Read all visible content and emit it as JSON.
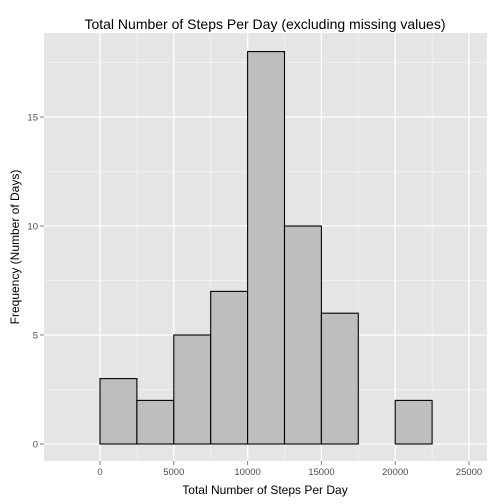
{
  "chart_data": {
    "type": "bar",
    "title": "Total Number of Steps Per Day (excluding missing values)",
    "xlabel": "Total Number of Steps Per Day",
    "ylabel": "Frequency (Number of Days)",
    "x_ticks": [
      0,
      5000,
      10000,
      15000,
      20000,
      25000
    ],
    "y_ticks": [
      0,
      5,
      10,
      15
    ],
    "xlim": [
      -2500,
      25000
    ],
    "ylim": [
      0,
      18
    ],
    "bin_width": 2500,
    "bins": [
      {
        "start": -2500,
        "end": 0,
        "count": 0
      },
      {
        "start": 0,
        "end": 2500,
        "count": 3
      },
      {
        "start": 2500,
        "end": 5000,
        "count": 2
      },
      {
        "start": 5000,
        "end": 7500,
        "count": 5
      },
      {
        "start": 7500,
        "end": 10000,
        "count": 7
      },
      {
        "start": 10000,
        "end": 12500,
        "count": 18
      },
      {
        "start": 12500,
        "end": 15000,
        "count": 10
      },
      {
        "start": 15000,
        "end": 17500,
        "count": 6
      },
      {
        "start": 17500,
        "end": 20000,
        "count": 0
      },
      {
        "start": 20000,
        "end": 22500,
        "count": 2
      },
      {
        "start": 22500,
        "end": 25000,
        "count": 0
      }
    ],
    "grid": true,
    "colors": {
      "panel": "#e5e5e5",
      "grid_major": "#ffffff",
      "grid_minor": "#f2f2f2",
      "bar_fill": "#bebebe",
      "bar_stroke": "#000000"
    }
  }
}
